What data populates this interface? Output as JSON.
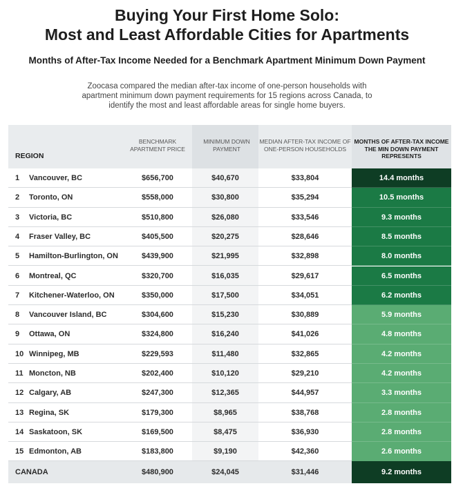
{
  "title_line1": "Buying Your First Home Solo:",
  "title_line2": "Most and Least Affordable Cities for Apartments",
  "subtitle": "Months of After-Tax Income Needed for a Benchmark Apartment Minimum Down Payment",
  "description": "Zoocasa compared the median after-tax income of one-person households with apartment minimum down payment requirements for 15 regions across Canada, to identify the most and least affordable areas for single home buyers.",
  "colors": {
    "darkest": "#0e3d24",
    "dark": "#1b7a45",
    "medium": "#5aac73",
    "header_gray": "#e9ecee"
  },
  "chart_data": {
    "type": "table",
    "columns": [
      "REGION",
      "BENCHMARK APARTMENT PRICE",
      "MINIMUM DOWN PAYMENT",
      "MEDIAN AFTER-TAX INCOME OF ONE-PERSON HOUSEHOLDS",
      "MONTHS OF AFTER-TAX INCOME THE MIN DOWN PAYMENT REPRESENTS"
    ],
    "rows": [
      {
        "rank": "1",
        "region": "Vancouver, BC",
        "price": "$656,700",
        "down": "$40,670",
        "income": "$33,804",
        "months": "14.4 months",
        "months_value": 14.4
      },
      {
        "rank": "2",
        "region": "Toronto, ON",
        "price": "$558,000",
        "down": "$30,800",
        "income": "$35,294",
        "months": "10.5 months",
        "months_value": 10.5
      },
      {
        "rank": "3",
        "region": "Victoria, BC",
        "price": "$510,800",
        "down": "$26,080",
        "income": "$33,546",
        "months": "9.3 months",
        "months_value": 9.3
      },
      {
        "rank": "4",
        "region": "Fraser Valley, BC",
        "price": "$405,500",
        "down": "$20,275",
        "income": "$28,646",
        "months": "8.5 months",
        "months_value": 8.5
      },
      {
        "rank": "5",
        "region": "Hamilton-Burlington, ON",
        "price": "$439,900",
        "down": "$21,995",
        "income": "$32,898",
        "months": "8.0 months",
        "months_value": 8.0
      },
      {
        "rank": "6",
        "region": "Montreal, QC",
        "price": "$320,700",
        "down": "$16,035",
        "income": "$29,617",
        "months": "6.5 months",
        "months_value": 6.5
      },
      {
        "rank": "7",
        "region": "Kitchener-Waterloo, ON",
        "price": "$350,000",
        "down": "$17,500",
        "income": "$34,051",
        "months": "6.2 months",
        "months_value": 6.2
      },
      {
        "rank": "8",
        "region": "Vancouver Island, BC",
        "price": "$304,600",
        "down": "$15,230",
        "income": "$30,889",
        "months": "5.9 months",
        "months_value": 5.9
      },
      {
        "rank": "9",
        "region": "Ottawa, ON",
        "price": "$324,800",
        "down": "$16,240",
        "income": "$41,026",
        "months": "4.8 months",
        "months_value": 4.8
      },
      {
        "rank": "10",
        "region": "Winnipeg, MB",
        "price": "$229,593",
        "down": "$11,480",
        "income": "$32,865",
        "months": "4.2 months",
        "months_value": 4.2
      },
      {
        "rank": "11",
        "region": "Moncton, NB",
        "price": "$202,400",
        "down": "$10,120",
        "income": "$29,210",
        "months": "4.2 months",
        "months_value": 4.2
      },
      {
        "rank": "12",
        "region": "Calgary, AB",
        "price": "$247,300",
        "down": "$12,365",
        "income": "$44,957",
        "months": "3.3 months",
        "months_value": 3.3
      },
      {
        "rank": "13",
        "region": "Regina, SK",
        "price": "$179,300",
        "down": "$8,965",
        "income": "$38,768",
        "months": "2.8 months",
        "months_value": 2.8
      },
      {
        "rank": "14",
        "region": "Saskatoon, SK",
        "price": "$169,500",
        "down": "$8,475",
        "income": "$36,930",
        "months": "2.8 months",
        "months_value": 2.8
      },
      {
        "rank": "15",
        "region": "Edmonton, AB",
        "price": "$183,800",
        "down": "$9,190",
        "income": "$42,360",
        "months": "2.6 months",
        "months_value": 2.6
      }
    ],
    "total": {
      "region": "CANADA",
      "price": "$480,900",
      "down": "$24,045",
      "income": "$31,446",
      "months": "9.2 months",
      "months_value": 9.2
    }
  },
  "header": {
    "region": "REGION",
    "price": "BENCHMARK APARTMENT PRICE",
    "down": "MINIMUM DOWN PAYMENT",
    "income": "MEDIAN AFTER-TAX INCOME OF ONE-PERSON HOUSEHOLDS",
    "months": "MONTHS OF AFTER-TAX INCOME THE MIN DOWN PAYMENT REPRESENTS"
  }
}
